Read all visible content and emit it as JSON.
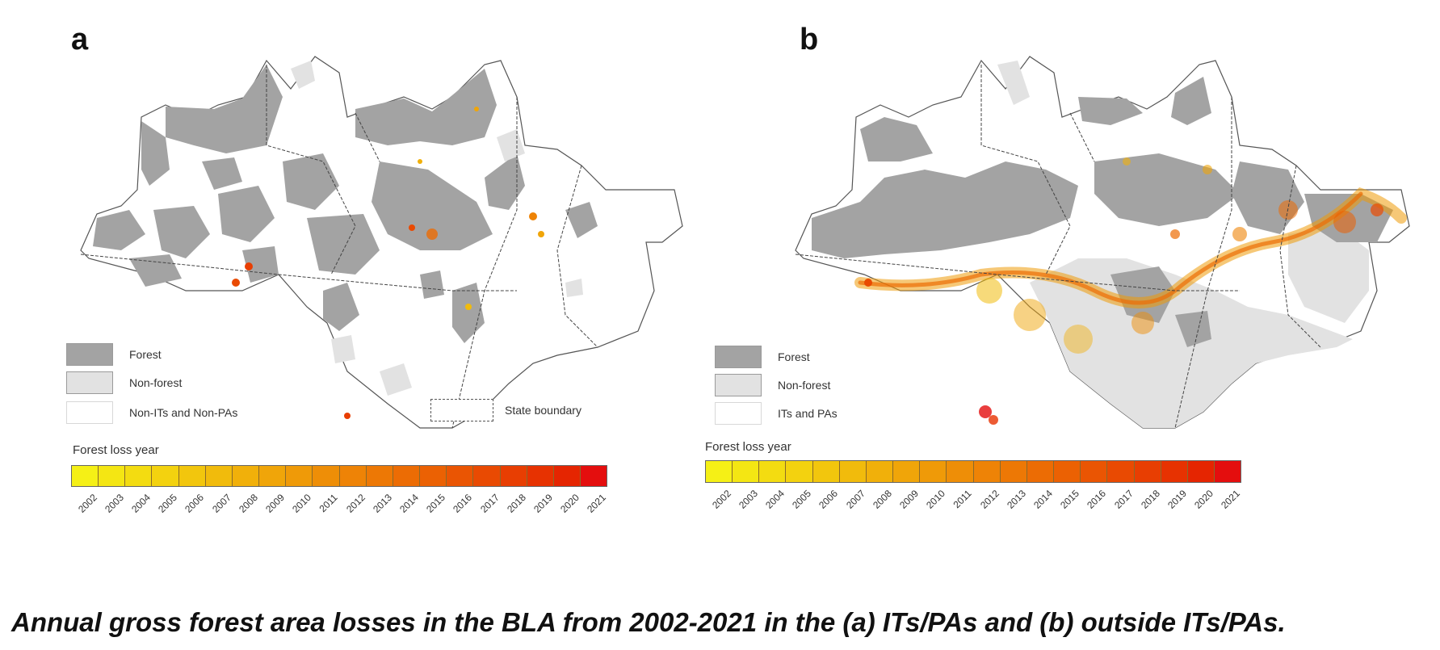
{
  "panels": [
    {
      "letter": "a",
      "legend": {
        "forest": "Forest",
        "non_forest": "Non-forest",
        "outside": "Non-ITs and Non-PAs",
        "state_boundary": "State boundary"
      },
      "loss_title": "Forest loss year"
    },
    {
      "letter": "b",
      "legend": {
        "forest": "Forest",
        "non_forest": "Non-forest",
        "outside": "ITs and PAs"
      },
      "loss_title": "Forest loss year"
    }
  ],
  "colorbar": {
    "years": [
      "2002",
      "2003",
      "2004",
      "2005",
      "2006",
      "2007",
      "2008",
      "2009",
      "2010",
      "2011",
      "2012",
      "2013",
      "2014",
      "2015",
      "2016",
      "2017",
      "2018",
      "2019",
      "2020",
      "2021"
    ],
    "colors": [
      "#f5f016",
      "#f4e613",
      "#f3dc11",
      "#f3d20f",
      "#f2c60d",
      "#f1bb0c",
      "#f1b00a",
      "#f0a509",
      "#ef9a08",
      "#ee8e07",
      "#ee8306",
      "#ed7805",
      "#ec6c04",
      "#eb6103",
      "#ea5503",
      "#e94a02",
      "#e83e02",
      "#e73201",
      "#e52501",
      "#e40e0e"
    ]
  },
  "colors": {
    "forest": "#a3a3a3",
    "non_forest": "#e2e2e2",
    "outside": "#ffffff",
    "boundary": "#444444"
  },
  "caption": "Annual gross forest area losses in the BLA from 2002-2021 in the (a) ITs/PAs and (b) outside ITs/PAs."
}
